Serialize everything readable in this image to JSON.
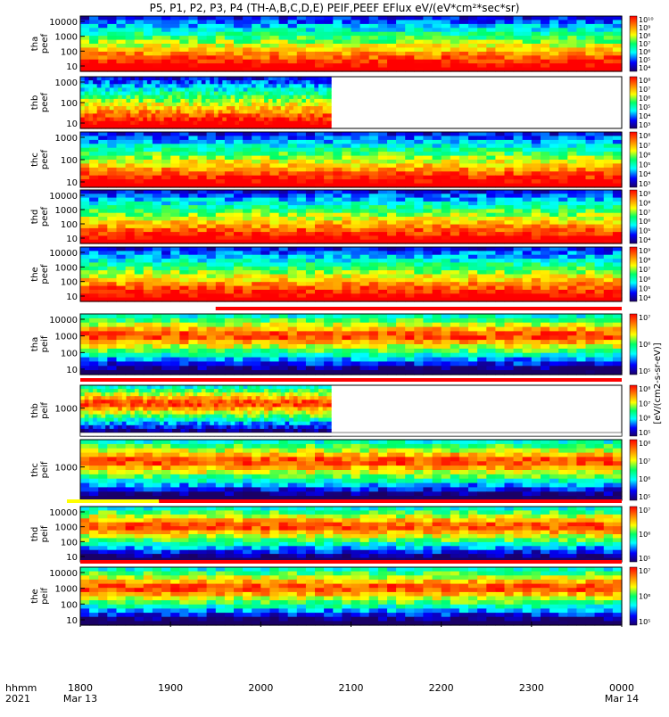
{
  "chart_data": {
    "type": "heatmap",
    "title": "P5, P1, P2, P3, P4 (TH-A,B,C,D,E) PEIF,PEEF EFlux eV/(eV*cm²*sec*sr)",
    "colorbar_label": "[eV/(cm2-s-sr-eV)]",
    "colormap": [
      "#1a0066",
      "#0000ff",
      "#00ffff",
      "#00ff66",
      "#ffff00",
      "#ff8800",
      "#ff0000"
    ],
    "time_axis": {
      "row1_label": "hhmm",
      "row2_label": "2021",
      "ticks": [
        {
          "label": "1800",
          "sub": "Mar 13"
        },
        {
          "label": "1900",
          "sub": ""
        },
        {
          "label": "2000",
          "sub": ""
        },
        {
          "label": "2100",
          "sub": ""
        },
        {
          "label": "2200",
          "sub": ""
        },
        {
          "label": "2300",
          "sub": ""
        },
        {
          "label": "0000",
          "sub": "Mar 14"
        }
      ]
    },
    "panels": [
      {
        "probe": "tha",
        "species": "peef",
        "yticks": [
          "10000",
          "1000",
          "100",
          "10"
        ],
        "data_end": 1.0,
        "cbar_ticks": [
          "10¹⁰",
          "10⁹",
          "10⁸",
          "10⁷",
          "10⁶",
          "10⁵",
          "10⁴"
        ],
        "bar": "none"
      },
      {
        "probe": "thb",
        "species": "peef",
        "yticks": [
          "1000",
          "100",
          "10"
        ],
        "data_end": 0.463,
        "cbar_ticks": [
          "10⁸",
          "10⁷",
          "10⁶",
          "10⁵",
          "10⁴",
          "10³"
        ],
        "bar": "none"
      },
      {
        "probe": "thc",
        "species": "peef",
        "yticks": [
          "1000",
          "100",
          "10"
        ],
        "data_end": 1.0,
        "cbar_ticks": [
          "10⁸",
          "10⁷",
          "10⁶",
          "10⁵",
          "10⁴",
          "10³"
        ],
        "bar": "none"
      },
      {
        "probe": "thd",
        "species": "peef",
        "yticks": [
          "10000",
          "1000",
          "100",
          "10"
        ],
        "data_end": 1.0,
        "cbar_ticks": [
          "10⁹",
          "10⁸",
          "10⁷",
          "10⁶",
          "10⁵",
          "10⁴"
        ],
        "bar": "none"
      },
      {
        "probe": "the",
        "species": "peef",
        "yticks": [
          "10000",
          "1000",
          "100",
          "10"
        ],
        "data_end": 1.0,
        "cbar_ticks": [
          "10⁹",
          "10⁸",
          "10⁷",
          "10⁶",
          "10⁵",
          "10⁴"
        ],
        "bar": "red-partial"
      },
      {
        "probe": "tha",
        "species": "peif",
        "yticks": [
          "10000",
          "1000",
          "100",
          "10"
        ],
        "data_end": 1.0,
        "cbar_ticks": [
          "10⁷",
          "10⁶",
          "10⁵"
        ],
        "bar": "red"
      },
      {
        "probe": "thb",
        "species": "peif",
        "yticks": [
          "1000"
        ],
        "data_end": 0.463,
        "cbar_ticks": [
          "10⁸",
          "10⁷",
          "10⁶",
          "10⁵"
        ],
        "bar": "white"
      },
      {
        "probe": "thc",
        "species": "peif",
        "yticks": [
          "1000"
        ],
        "data_end": 1.0,
        "cbar_ticks": [
          "10⁸",
          "10⁷",
          "10⁶",
          "10⁵"
        ],
        "bar": "yellow-red"
      },
      {
        "probe": "thd",
        "species": "peif",
        "yticks": [
          "10000",
          "1000",
          "100",
          "10"
        ],
        "data_end": 1.0,
        "cbar_ticks": [
          "10⁷",
          "10⁶",
          "10⁵"
        ],
        "bar": "red"
      },
      {
        "probe": "the",
        "species": "peif",
        "yticks": [
          "10000",
          "1000",
          "100",
          "10"
        ],
        "data_end": 1.0,
        "cbar_ticks": [
          "10⁷",
          "10⁶",
          "10⁵"
        ],
        "bar": "none"
      }
    ]
  }
}
